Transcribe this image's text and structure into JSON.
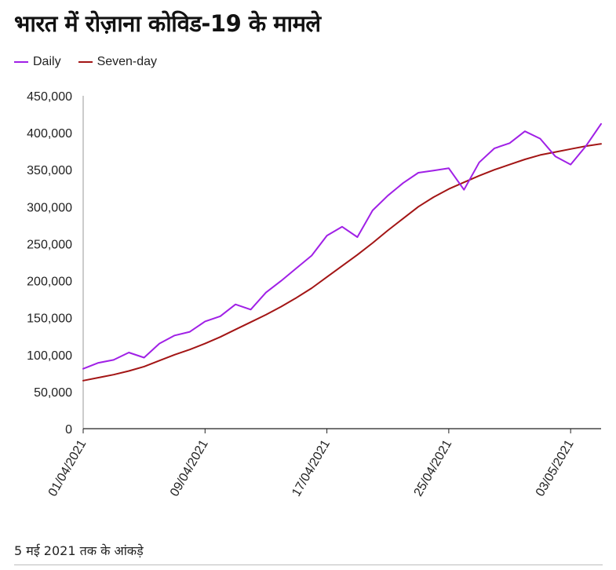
{
  "chart_data": {
    "type": "line",
    "title": "भारत में रोज़ाना कोविड-19 के मामले",
    "xlabel": "",
    "ylabel": "",
    "ylim": [
      0,
      450000
    ],
    "yticks": [
      "0",
      "50,000",
      "100,000",
      "150,000",
      "200,000",
      "250,000",
      "300,000",
      "350,000",
      "400,000",
      "450,000"
    ],
    "xticks": [
      {
        "index": 0,
        "label": "01/04/2021"
      },
      {
        "index": 8,
        "label": "09/04/2021"
      },
      {
        "index": 16,
        "label": "17/04/2021"
      },
      {
        "index": 24,
        "label": "25/04/2021"
      },
      {
        "index": 32,
        "label": "03/05/2021"
      }
    ],
    "dates": [
      "01/04/2021",
      "02/04/2021",
      "03/04/2021",
      "04/04/2021",
      "05/04/2021",
      "06/04/2021",
      "07/04/2021",
      "08/04/2021",
      "09/04/2021",
      "10/04/2021",
      "11/04/2021",
      "12/04/2021",
      "13/04/2021",
      "14/04/2021",
      "15/04/2021",
      "16/04/2021",
      "17/04/2021",
      "18/04/2021",
      "19/04/2021",
      "20/04/2021",
      "21/04/2021",
      "22/04/2021",
      "23/04/2021",
      "24/04/2021",
      "25/04/2021",
      "26/04/2021",
      "27/04/2021",
      "28/04/2021",
      "29/04/2021",
      "30/04/2021",
      "01/05/2021",
      "02/05/2021",
      "03/05/2021",
      "04/05/2021",
      "05/05/2021"
    ],
    "legend_position": "top-left",
    "series": [
      {
        "name": "Daily",
        "color": "#a020e6",
        "values": [
          81000,
          89000,
          93000,
          103000,
          96000,
          115000,
          126000,
          131000,
          145000,
          152000,
          168000,
          161000,
          184000,
          200000,
          217000,
          234000,
          261000,
          273000,
          259000,
          295000,
          315000,
          332000,
          346000,
          349000,
          352000,
          323000,
          360000,
          379000,
          386000,
          402000,
          392000,
          368000,
          357000,
          382000,
          412000
        ]
      },
      {
        "name": "Seven-day",
        "color": "#a31515",
        "values": [
          65000,
          69000,
          73000,
          78000,
          84000,
          92000,
          100000,
          107000,
          115000,
          124000,
          134000,
          144000,
          154000,
          165000,
          177000,
          190000,
          205000,
          220000,
          235000,
          251000,
          268000,
          284000,
          300000,
          313000,
          324000,
          333000,
          342000,
          350000,
          357000,
          364000,
          370000,
          374000,
          378000,
          382000,
          385000
        ]
      }
    ],
    "footnote": "5 मई 2021 तक के आंकड़े"
  }
}
